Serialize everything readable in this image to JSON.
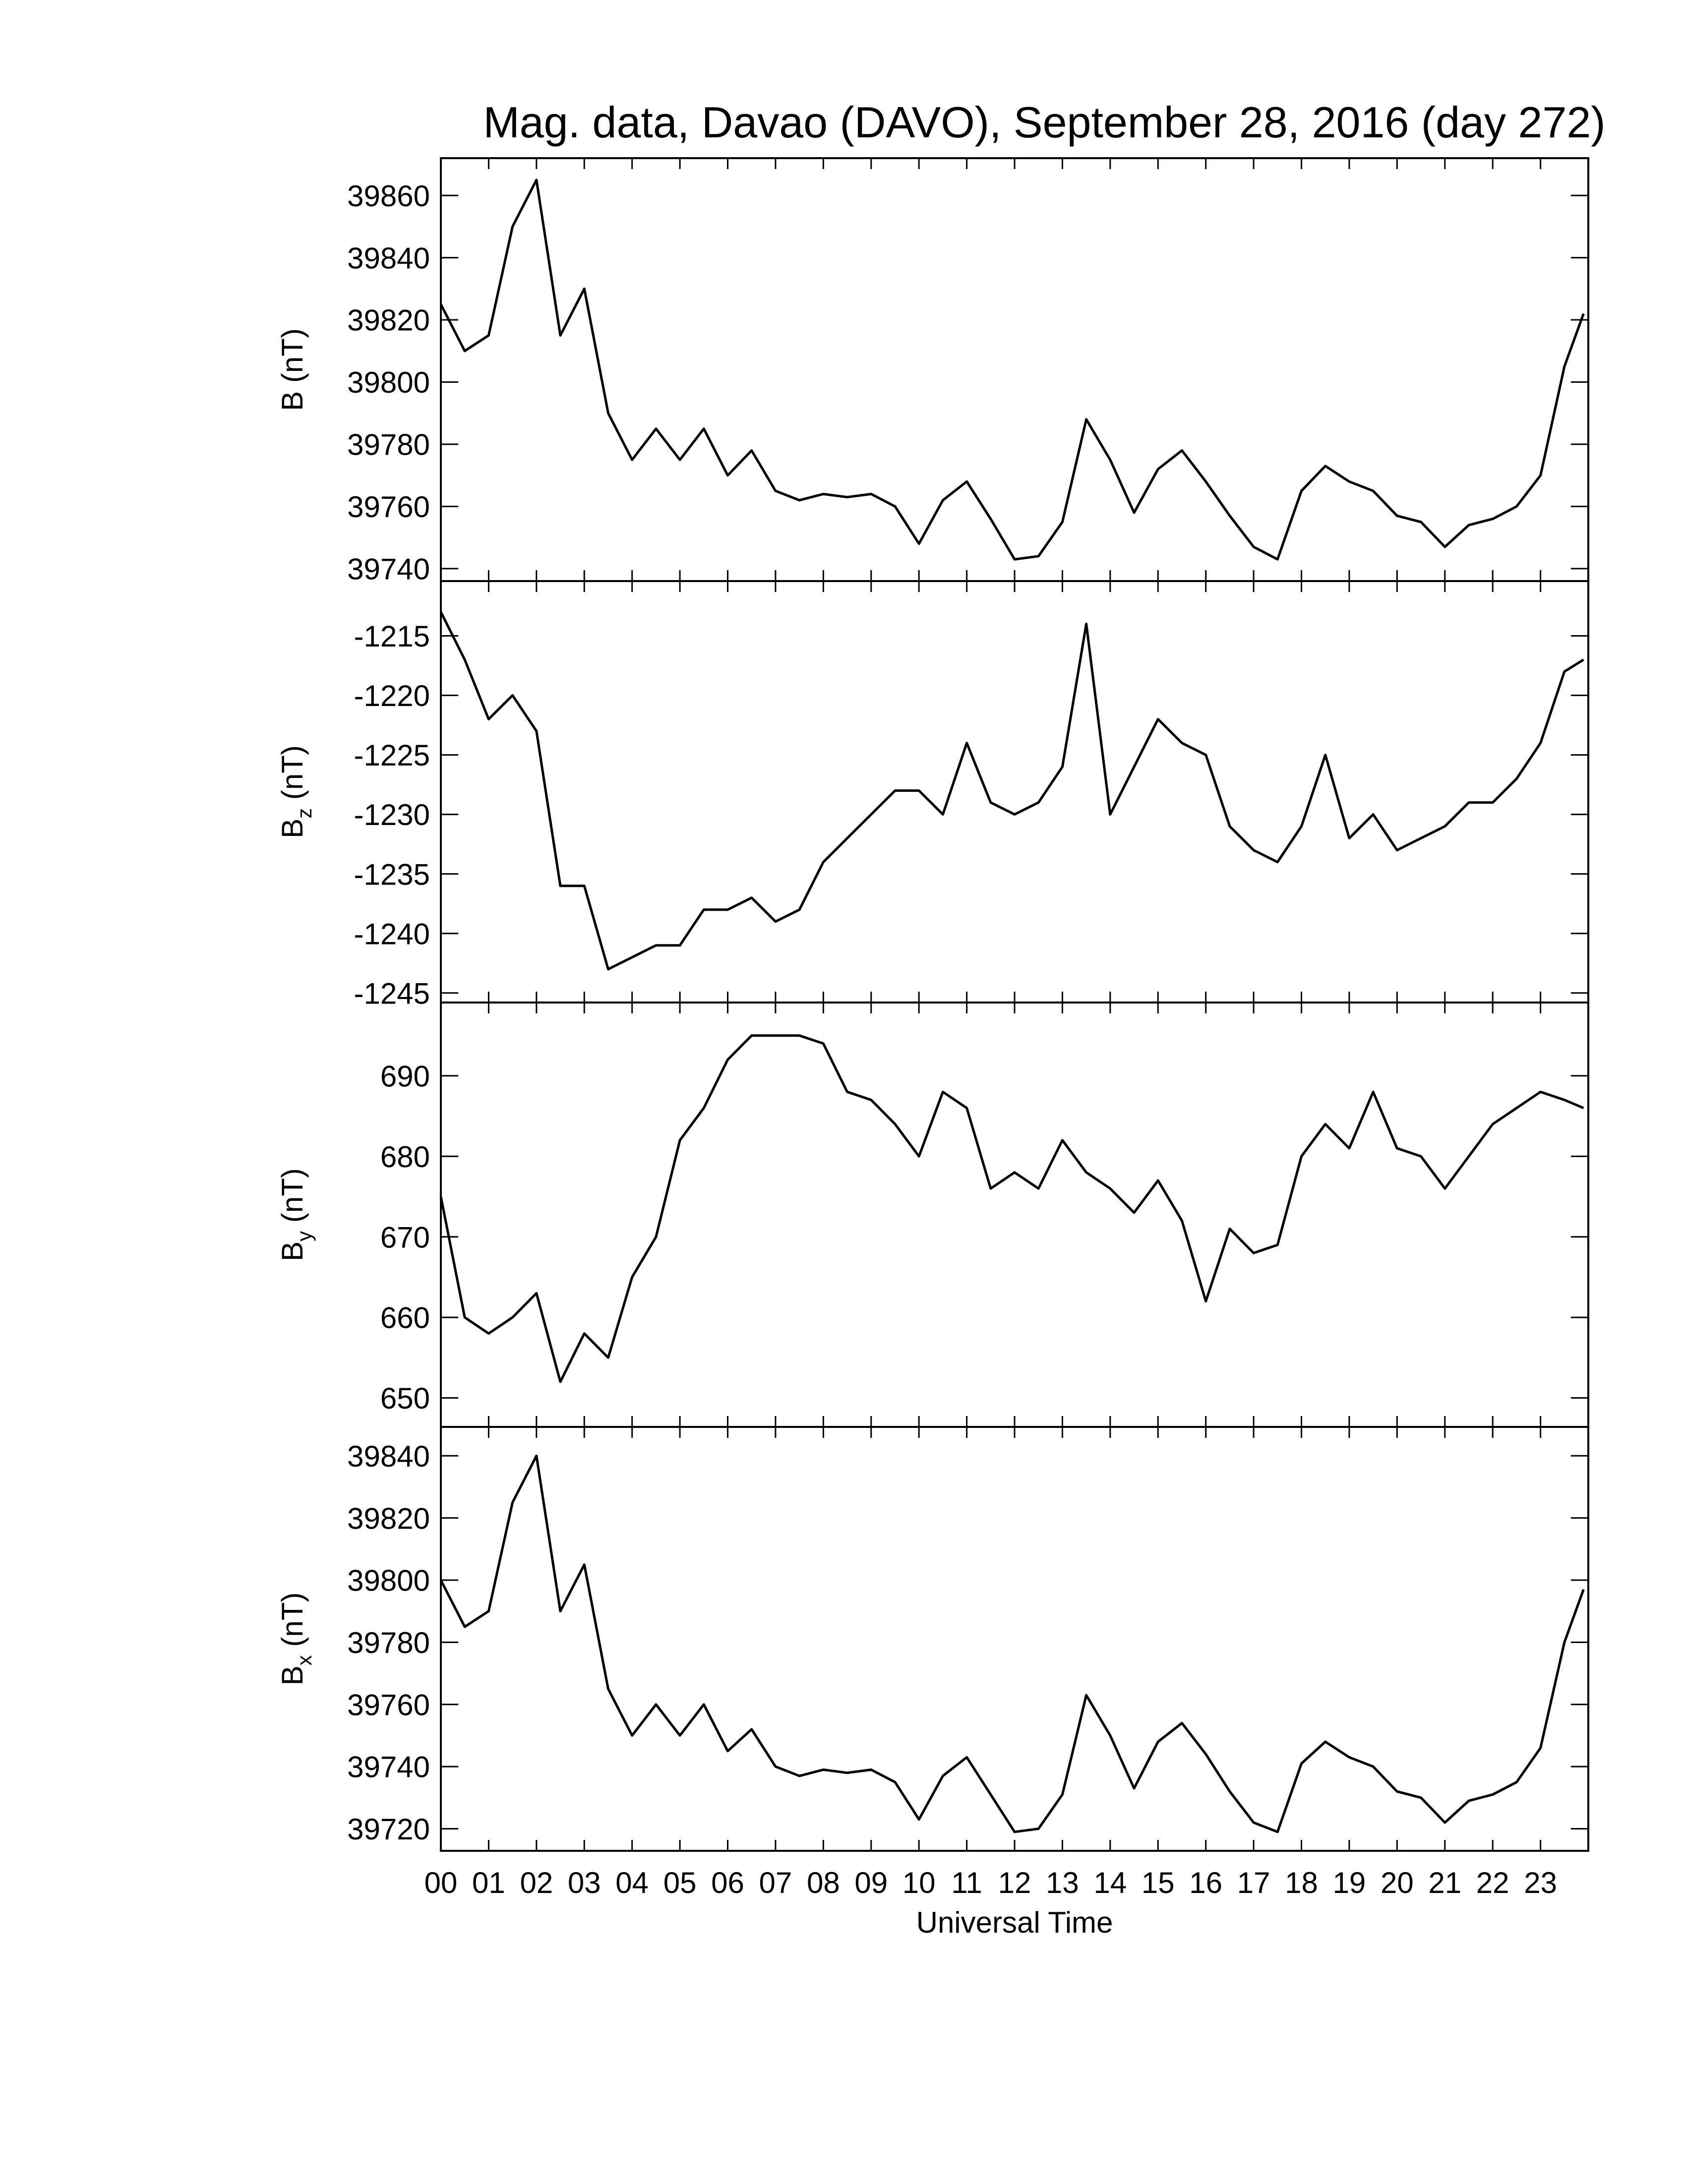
{
  "chart_data": [
    {
      "type": "line",
      "title": "Mag. data, Davao (DAVO), September 28, 2016 (day 272)",
      "ylabel": "B",
      "ylabel_unit": "(nT)",
      "x": [
        0,
        0.5,
        1,
        1.5,
        2,
        2.5,
        3,
        3.5,
        4,
        4.5,
        5,
        5.5,
        6,
        6.5,
        7,
        7.5,
        8,
        8.5,
        9,
        9.5,
        10,
        10.5,
        11,
        11.5,
        12,
        12.5,
        13,
        13.5,
        14,
        14.5,
        15,
        15.5,
        16,
        16.5,
        17,
        17.5,
        18,
        18.5,
        19,
        19.5,
        20,
        20.5,
        21,
        21.5,
        22,
        22.5,
        23,
        23.5,
        23.9
      ],
      "series": [
        {
          "color": "#000000",
          "values": [
            39825,
            39810,
            39815,
            39850,
            39865,
            39815,
            39830,
            39790,
            39775,
            39785,
            39775,
            39785,
            39770,
            39778,
            39765,
            39762,
            39764,
            39763,
            39764,
            39760,
            39748,
            39762,
            39768,
            39756,
            39743,
            39744,
            39755,
            39788,
            39775,
            39758,
            39772,
            39778,
            39768,
            39757,
            39747,
            39743,
            39765,
            39773,
            39768,
            39765,
            39757,
            39755,
            39747,
            39754,
            39756,
            39760,
            39770,
            39805,
            39822
          ]
        }
      ],
      "xlim": [
        0,
        24
      ],
      "xticks": [
        0,
        1,
        2,
        3,
        4,
        5,
        6,
        7,
        8,
        9,
        10,
        11,
        12,
        13,
        14,
        15,
        16,
        17,
        18,
        19,
        20,
        21,
        22,
        23
      ],
      "ylim": [
        39736,
        39872
      ],
      "yticks": [
        39740,
        39760,
        39780,
        39800,
        39820,
        39840,
        39860
      ]
    },
    {
      "type": "line",
      "ylabel": "B",
      "ylabel_sub": "z",
      "ylabel_unit": "(nT)",
      "x": [
        0,
        0.5,
        1,
        1.5,
        2,
        2.5,
        3,
        3.5,
        4,
        4.5,
        5,
        5.5,
        6,
        6.5,
        7,
        7.5,
        8,
        8.5,
        9,
        9.5,
        10,
        10.5,
        11,
        11.5,
        12,
        12.5,
        13,
        13.5,
        14,
        14.5,
        15,
        15.5,
        16,
        16.5,
        17,
        17.5,
        18,
        18.5,
        19,
        19.5,
        20,
        20.5,
        21,
        21.5,
        22,
        22.5,
        23,
        23.5,
        23.9
      ],
      "series": [
        {
          "color": "#000000",
          "values": [
            -1213,
            -1217,
            -1222,
            -1220,
            -1223,
            -1236,
            -1236,
            -1243,
            -1242,
            -1241,
            -1241,
            -1238,
            -1238,
            -1237,
            -1239,
            -1238,
            -1234,
            -1232,
            -1230,
            -1228,
            -1228,
            -1230,
            -1224,
            -1229,
            -1230,
            -1229,
            -1226,
            -1214,
            -1230,
            -1226,
            -1222,
            -1224,
            -1225,
            -1231,
            -1233,
            -1234,
            -1231,
            -1225,
            -1232,
            -1230,
            -1233,
            -1232,
            -1231,
            -1229,
            -1229,
            -1227,
            -1224,
            -1218,
            -1217
          ]
        }
      ],
      "xlim": [
        0,
        24
      ],
      "xticks": [
        0,
        1,
        2,
        3,
        4,
        5,
        6,
        7,
        8,
        9,
        10,
        11,
        12,
        13,
        14,
        15,
        16,
        17,
        18,
        19,
        20,
        21,
        22,
        23
      ],
      "ylim": [
        -1245.8,
        -1210.4
      ],
      "yticks": [
        -1245,
        -1240,
        -1235,
        -1230,
        -1225,
        -1220,
        -1215
      ]
    },
    {
      "type": "line",
      "ylabel": "B",
      "ylabel_sub": "y",
      "ylabel_unit": "(nT)",
      "x": [
        0,
        0.5,
        1,
        1.5,
        2,
        2.5,
        3,
        3.5,
        4,
        4.5,
        5,
        5.5,
        6,
        6.5,
        7,
        7.5,
        8,
        8.5,
        9,
        9.5,
        10,
        10.5,
        11,
        11.5,
        12,
        12.5,
        13,
        13.5,
        14,
        14.5,
        15,
        15.5,
        16,
        16.5,
        17,
        17.5,
        18,
        18.5,
        19,
        19.5,
        20,
        20.5,
        21,
        21.5,
        22,
        22.5,
        23,
        23.5,
        23.9
      ],
      "series": [
        {
          "color": "#000000",
          "values": [
            675,
            660,
            658,
            660,
            663,
            652,
            658,
            655,
            665,
            670,
            682,
            686,
            692,
            695,
            695,
            695,
            694,
            688,
            687,
            684,
            680,
            688,
            686,
            676,
            678,
            676,
            682,
            678,
            676,
            673,
            677,
            672,
            662,
            671,
            668,
            669,
            680,
            684,
            681,
            688,
            681,
            680,
            676,
            680,
            684,
            686,
            688,
            687,
            686
          ]
        }
      ],
      "xlim": [
        0,
        24
      ],
      "xticks": [
        0,
        1,
        2,
        3,
        4,
        5,
        6,
        7,
        8,
        9,
        10,
        11,
        12,
        13,
        14,
        15,
        16,
        17,
        18,
        19,
        20,
        21,
        22,
        23
      ],
      "ylim": [
        646.4,
        699.1
      ],
      "yticks": [
        650,
        660,
        670,
        680,
        690
      ]
    },
    {
      "type": "line",
      "ylabel": "B",
      "ylabel_sub": "x",
      "ylabel_unit": "(nT)",
      "xlabel": "Universal Time",
      "x": [
        0,
        0.5,
        1,
        1.5,
        2,
        2.5,
        3,
        3.5,
        4,
        4.5,
        5,
        5.5,
        6,
        6.5,
        7,
        7.5,
        8,
        8.5,
        9,
        9.5,
        10,
        10.5,
        11,
        11.5,
        12,
        12.5,
        13,
        13.5,
        14,
        14.5,
        15,
        15.5,
        16,
        16.5,
        17,
        17.5,
        18,
        18.5,
        19,
        19.5,
        20,
        20.5,
        21,
        21.5,
        22,
        22.5,
        23,
        23.5,
        23.9
      ],
      "series": [
        {
          "color": "#000000",
          "values": [
            39800,
            39785,
            39790,
            39825,
            39840,
            39790,
            39805,
            39765,
            39750,
            39760,
            39750,
            39760,
            39745,
            39752,
            39740,
            39737,
            39739,
            39738,
            39739,
            39735,
            39723,
            39737,
            39743,
            39731,
            39719,
            39720,
            39731,
            39763,
            39750,
            39733,
            39748,
            39754,
            39744,
            39732,
            39722,
            39719,
            39741,
            39748,
            39743,
            39740,
            39732,
            39730,
            39722,
            39729,
            39731,
            39735,
            39746,
            39780,
            39797
          ]
        }
      ],
      "xlim": [
        0,
        24
      ],
      "xticks": [
        {
          "value": 0,
          "label": "00"
        },
        {
          "value": 1,
          "label": "01"
        },
        {
          "value": 2,
          "label": "02"
        },
        {
          "value": 3,
          "label": "03"
        },
        {
          "value": 4,
          "label": "04"
        },
        {
          "value": 5,
          "label": "05"
        },
        {
          "value": 6,
          "label": "06"
        },
        {
          "value": 7,
          "label": "07"
        },
        {
          "value": 8,
          "label": "08"
        },
        {
          "value": 9,
          "label": "09"
        },
        {
          "value": 10,
          "label": "10"
        },
        {
          "value": 11,
          "label": "11"
        },
        {
          "value": 12,
          "label": "12"
        },
        {
          "value": 13,
          "label": "13"
        },
        {
          "value": 14,
          "label": "14"
        },
        {
          "value": 15,
          "label": "15"
        },
        {
          "value": 16,
          "label": "16"
        },
        {
          "value": 17,
          "label": "17"
        },
        {
          "value": 18,
          "label": "18"
        },
        {
          "value": 19,
          "label": "19"
        },
        {
          "value": 20,
          "label": "20"
        },
        {
          "value": 21,
          "label": "21"
        },
        {
          "value": 22,
          "label": "22"
        },
        {
          "value": 23,
          "label": "23"
        }
      ],
      "ylim": [
        39712.9,
        39849.3
      ],
      "yticks": [
        39720,
        39740,
        39760,
        39780,
        39800,
        39820,
        39840
      ]
    }
  ]
}
